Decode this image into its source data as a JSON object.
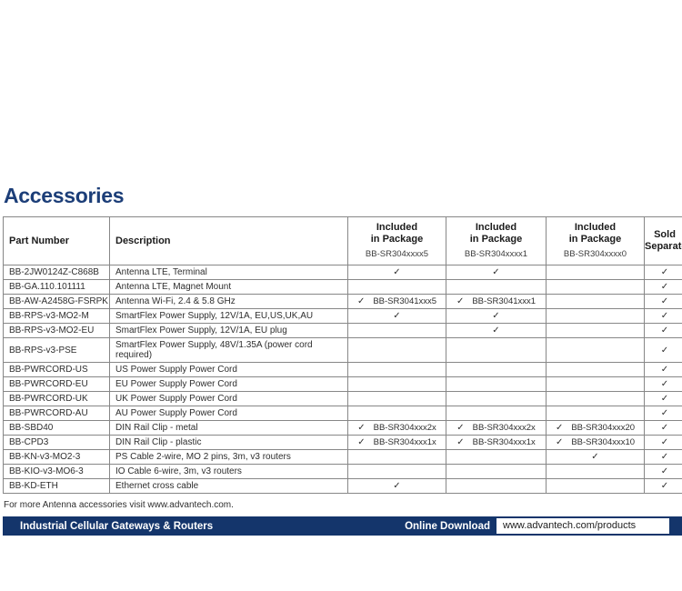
{
  "page": {
    "title": "Accessories",
    "title_color": "#1c3e78",
    "footer_note": "For more Antenna accessories visit www.advantech.com.",
    "bottom_bar": {
      "left_label": "Industrial Cellular Gateways & Routers",
      "download_label": "Online Download",
      "download_url": "www.advantech.com/products",
      "bar_color": "#14356b"
    }
  },
  "table": {
    "check_glyph": "✓",
    "header": {
      "part_label": "Part Number",
      "desc_label": "Description",
      "included_line1": "Included",
      "included_line2": "in Package",
      "package_models": [
        "BB-SR304xxxx5",
        "BB-SR304xxxx1",
        "BB-SR304xxxx0"
      ],
      "sold_label": "Sold Separately"
    },
    "rows": [
      {
        "part": "BB-2JW0124Z-C868B",
        "desc": "Antenna LTE, Terminal",
        "pkg": [
          true,
          true,
          null
        ],
        "sold": true
      },
      {
        "part": "BB-GA.110.101111",
        "desc": "Antenna LTE, Magnet Mount",
        "pkg": [
          null,
          null,
          null
        ],
        "sold": true
      },
      {
        "part": "BB-AW-A2458G-FSRPK",
        "desc": "Antenna Wi-Fi, 2.4 & 5.8 GHz",
        "pkg": [
          "BB-SR3041xxx5",
          "BB-SR3041xxx1",
          null
        ],
        "sold": true
      },
      {
        "part": "BB-RPS-v3-MO2-M",
        "desc": "SmartFlex Power Supply, 12V/1A, EU,US,UK,AU",
        "pkg": [
          true,
          true,
          null
        ],
        "sold": true
      },
      {
        "part": "BB-RPS-v3-MO2-EU",
        "desc": "SmartFlex Power Supply, 12V/1A, EU plug",
        "pkg": [
          null,
          true,
          null
        ],
        "sold": true
      },
      {
        "part": "BB-RPS-v3-PSE",
        "desc": "SmartFlex Power Supply, 48V/1.35A (power cord required)",
        "pkg": [
          null,
          null,
          null
        ],
        "sold": true,
        "tall": true
      },
      {
        "part": "BB-PWRCORD-US",
        "desc": "US Power Supply Power Cord",
        "pkg": [
          null,
          null,
          null
        ],
        "sold": true
      },
      {
        "part": "BB-PWRCORD-EU",
        "desc": "EU Power Supply Power Cord",
        "pkg": [
          null,
          null,
          null
        ],
        "sold": true
      },
      {
        "part": "BB-PWRCORD-UK",
        "desc": "UK Power Supply Power Cord",
        "pkg": [
          null,
          null,
          null
        ],
        "sold": true
      },
      {
        "part": "BB-PWRCORD-AU",
        "desc": "AU Power Supply Power Cord",
        "pkg": [
          null,
          null,
          null
        ],
        "sold": true
      },
      {
        "part": "BB-SBD40",
        "desc": "DIN Rail Clip - metal",
        "pkg": [
          "BB-SR304xxx2x",
          "BB-SR304xxx2x",
          "BB-SR304xxx20"
        ],
        "sold": true
      },
      {
        "part": "BB-CPD3",
        "desc": "DIN Rail Clip - plastic",
        "pkg": [
          "BB-SR304xxx1x",
          "BB-SR304xxx1x",
          "BB-SR304xxx10"
        ],
        "sold": true
      },
      {
        "part": "BB-KN-v3-MO2-3",
        "desc": "PS Cable 2-wire, MO 2 pins, 3m, v3 routers",
        "pkg": [
          null,
          null,
          true
        ],
        "sold": true
      },
      {
        "part": "BB-KIO-v3-MO6-3",
        "desc": "IO Cable 6-wire, 3m, v3 routers",
        "pkg": [
          null,
          null,
          null
        ],
        "sold": true
      },
      {
        "part": "BB-KD-ETH",
        "desc": "Ethernet cross cable",
        "pkg": [
          true,
          null,
          null
        ],
        "sold": true
      }
    ]
  }
}
